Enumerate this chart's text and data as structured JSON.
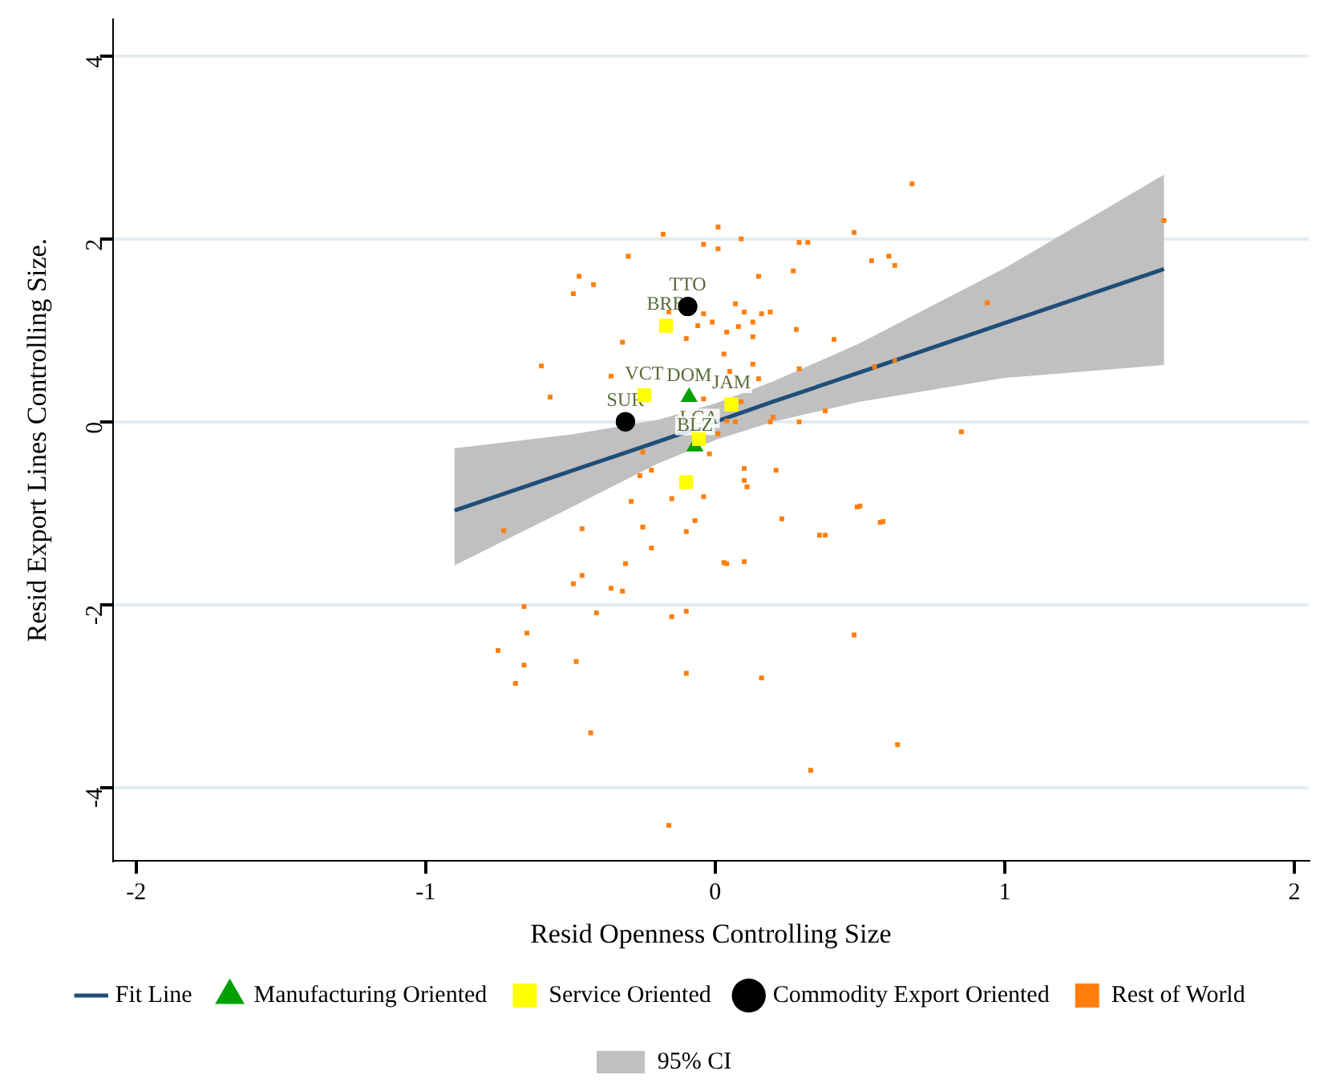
{
  "chart_data": {
    "type": "scatter",
    "xlabel": "Resid Openness Controlling Size",
    "ylabel": "Resid Export Lines Controlling Size.",
    "xlim": [
      -2.08,
      2.05
    ],
    "ylim": [
      -4.8,
      4.4
    ],
    "xticks": [
      -2,
      -1,
      0,
      1,
      2
    ],
    "yticks": [
      -4,
      -2,
      0,
      2,
      4
    ],
    "grid": "y",
    "legend": "bottom",
    "series": [
      {
        "name": "Fit Line",
        "type": "line",
        "color": "#1f4e79",
        "marker": "none",
        "x": [
          -0.9,
          -0.5,
          -0.2,
          0,
          0.2,
          0.5,
          1.0,
          1.55
        ],
        "values": [
          -0.97,
          -0.54,
          -0.22,
          0.0,
          0.22,
          0.54,
          1.08,
          1.67
        ],
        "lower": [
          -1.57,
          -0.94,
          -0.46,
          -0.2,
          0.0,
          0.22,
          0.48,
          0.62
        ],
        "upper": [
          -0.29,
          -0.14,
          0.02,
          0.2,
          0.44,
          0.86,
          1.68,
          2.7
        ]
      },
      {
        "name": "Manufacturing Oriented",
        "type": "scatter",
        "color": "#00a000",
        "marker": "triangle",
        "x": [
          -0.09,
          -0.07
        ],
        "values": [
          0.27,
          -0.27
        ]
      },
      {
        "name": "Service Oriented",
        "type": "scatter",
        "color": "#ffff00",
        "marker": "square",
        "x": [
          -0.17,
          -0.245,
          0.056,
          -0.056,
          -0.1
        ],
        "values": [
          1.05,
          0.29,
          0.19,
          -0.19,
          -0.66
        ]
      },
      {
        "name": "Commodity Export Oriented",
        "type": "scatter",
        "color": "#000000",
        "marker": "circle",
        "x": [
          -0.095,
          -0.31
        ],
        "values": [
          1.26,
          0.0
        ]
      },
      {
        "name": "Rest of World",
        "type": "scatter",
        "color": "#ff7f0e",
        "marker": "square",
        "x": [
          0.68,
          1.55,
          0.94,
          0.85,
          0.48,
          0.54,
          0.6,
          0.62,
          0.41,
          0.55,
          0.62,
          0.38,
          0.29,
          0.28,
          0.27,
          0.29,
          0.32,
          0.15,
          0.09,
          0.01,
          0.01,
          -0.04,
          0.07,
          0.1,
          0.13,
          0.16,
          0.19,
          0.08,
          0.04,
          -0.01,
          -0.04,
          0.13,
          0.15,
          0.09,
          0.04,
          0.07,
          0.19,
          0.2,
          0.29,
          0.1,
          0.1,
          0.11,
          0.21,
          0.23,
          0.36,
          0.38,
          0.5,
          0.58,
          0.48,
          0.63,
          0.33,
          0.16,
          0.1,
          0.04,
          -0.04,
          -0.07,
          -0.1,
          -0.1,
          -0.15,
          -0.1,
          -0.16,
          -0.15,
          -0.22,
          -0.25,
          -0.29,
          -0.26,
          -0.22,
          -0.25,
          -0.31,
          -0.32,
          -0.36,
          -0.41,
          -0.46,
          -0.49,
          -0.46,
          -0.48,
          -0.43,
          -0.66,
          -0.65,
          -0.66,
          -0.69,
          -0.75,
          -0.73,
          -0.6,
          -0.57,
          -0.49,
          -0.47,
          -0.42,
          -0.3,
          -0.32,
          -0.36,
          -0.18,
          -0.16,
          -0.1,
          -0.06,
          0.03,
          0.13,
          0.05,
          -0.04,
          0.01,
          -0.02,
          0.03,
          0.57,
          0.49
        ],
        "values": [
          2.6,
          2.2,
          1.3,
          -0.11,
          2.07,
          1.76,
          1.81,
          1.71,
          0.9,
          0.6,
          0.67,
          0.12,
          0.58,
          1.01,
          1.65,
          1.96,
          1.96,
          1.59,
          2.0,
          2.13,
          1.89,
          1.94,
          1.29,
          1.2,
          1.09,
          1.18,
          1.2,
          1.04,
          0.98,
          1.09,
          1.18,
          0.93,
          0.47,
          0.22,
          0.01,
          0.0,
          0.0,
          0.05,
          0.0,
          -0.51,
          -0.64,
          -0.71,
          -0.53,
          -1.06,
          -1.24,
          -1.24,
          -0.92,
          -1.09,
          -2.33,
          -3.53,
          -3.81,
          -2.8,
          -1.53,
          -1.55,
          -0.82,
          -1.08,
          -1.2,
          -2.07,
          -2.13,
          -2.75,
          -4.41,
          -0.84,
          -1.38,
          -1.15,
          -0.87,
          -0.59,
          -0.53,
          -0.33,
          -1.55,
          -1.85,
          -1.82,
          -2.09,
          -1.68,
          -1.77,
          -1.17,
          -2.62,
          -3.4,
          -2.02,
          -2.31,
          -2.66,
          -2.86,
          -2.5,
          -1.19,
          0.61,
          0.27,
          1.4,
          1.59,
          1.5,
          1.81,
          0.87,
          0.5,
          2.05,
          1.2,
          0.91,
          1.05,
          0.74,
          0.63,
          0.55,
          0.25,
          -0.13,
          -0.35,
          -1.54,
          -1.1,
          -0.93
        ]
      }
    ],
    "annotations": [
      "95% CI",
      {
        "text": "TTO",
        "x": -0.095,
        "y": 1.26
      },
      {
        "text": "BRB",
        "x": -0.17,
        "y": 1.05
      },
      {
        "text": "VCT",
        "x": -0.245,
        "y": 0.29
      },
      {
        "text": "SUR",
        "x": -0.31,
        "y": 0.0
      },
      {
        "text": "DOM",
        "x": -0.09,
        "y": 0.27
      },
      {
        "text": "JAM",
        "x": 0.056,
        "y": 0.19
      },
      {
        "text": "LCA",
        "x": -0.056,
        "y": -0.19
      },
      {
        "text": "BLZ",
        "x": -0.07,
        "y": -0.27
      }
    ]
  }
}
